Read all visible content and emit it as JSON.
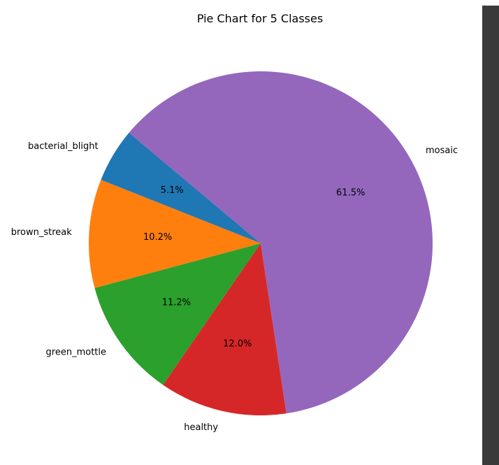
{
  "chart_data": {
    "type": "pie",
    "title": "Pie Chart for 5 Classes",
    "start_angle_deg": 140,
    "direction": "counterclockwise",
    "slices": [
      {
        "label": "bacterial_blight",
        "value": 5.1,
        "pct_label": "5.1%",
        "color": "#1f77b4"
      },
      {
        "label": "brown_streak",
        "value": 10.2,
        "pct_label": "10.2%",
        "color": "#ff7f0e"
      },
      {
        "label": "green_mottle",
        "value": 11.2,
        "pct_label": "11.2%",
        "color": "#2ca02c"
      },
      {
        "label": "healthy",
        "value": 12.0,
        "pct_label": "12.0%",
        "color": "#d62728"
      },
      {
        "label": "mosaic",
        "value": 61.5,
        "pct_label": "61.5%",
        "color": "#9467bd"
      }
    ]
  }
}
